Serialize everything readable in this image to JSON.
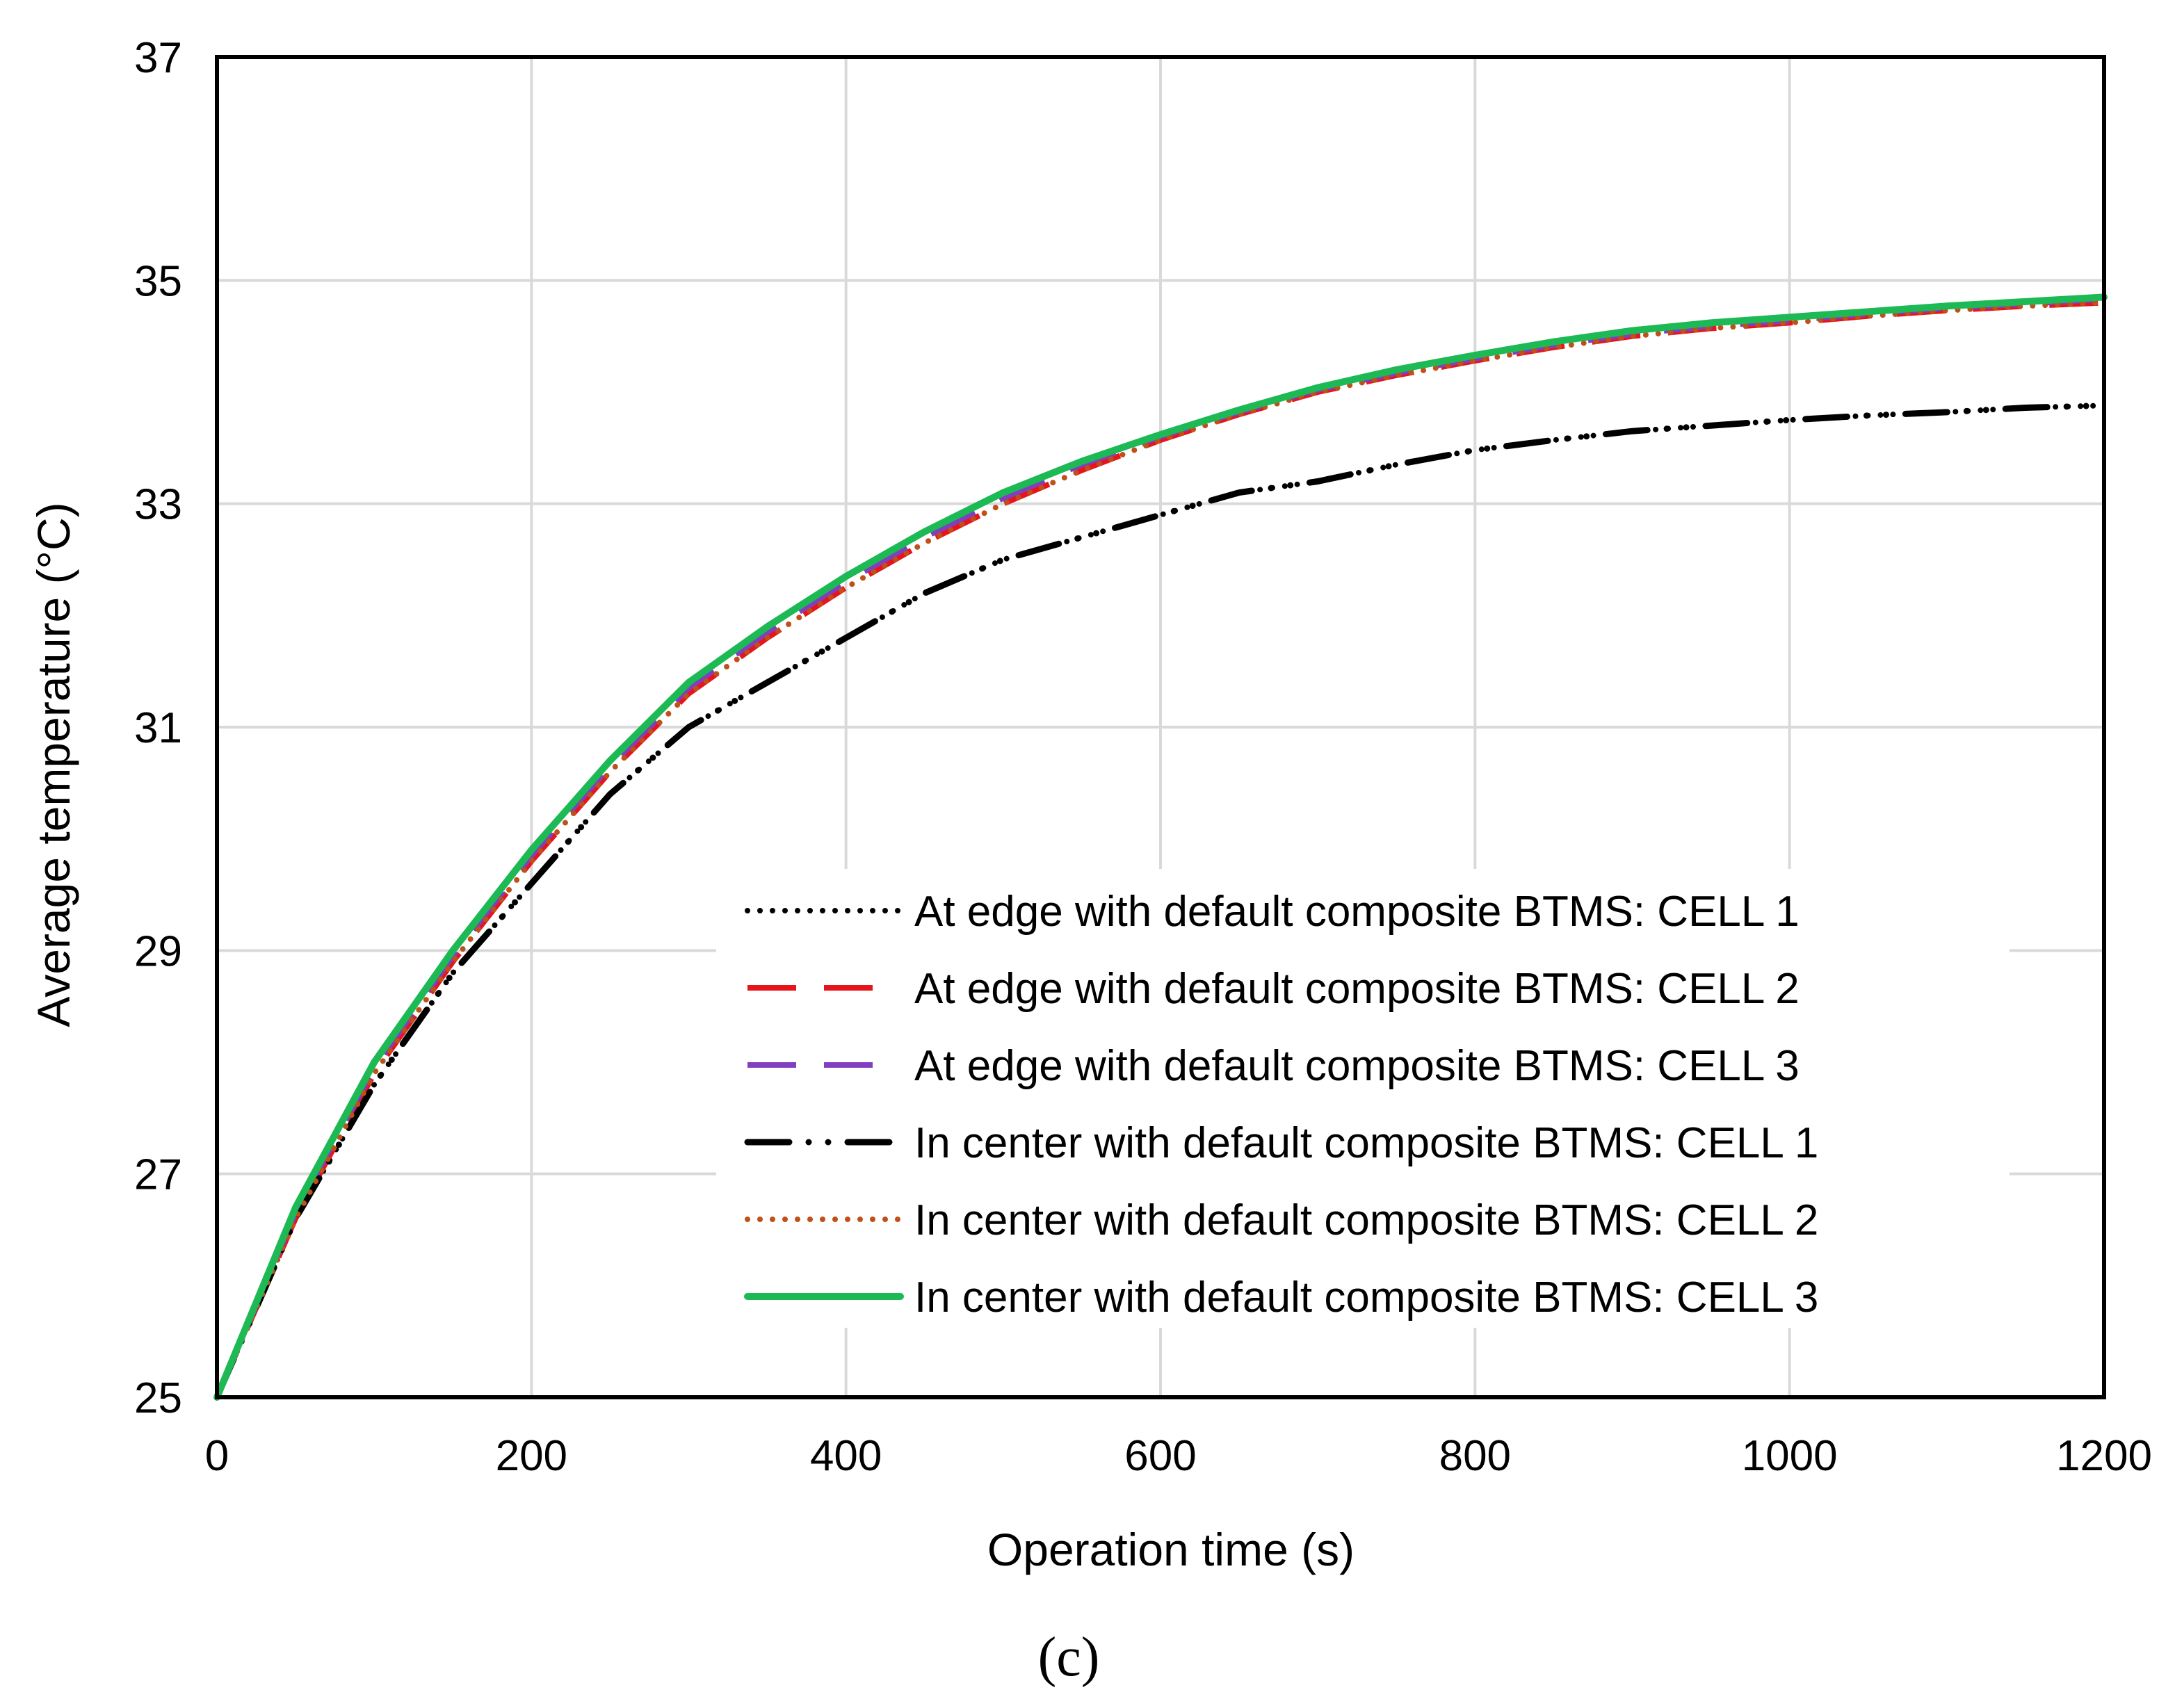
{
  "chart_data": {
    "type": "line",
    "xlabel": "Operation time (s)",
    "ylabel": "Average temperature (°C)",
    "xlim": [
      0,
      1200
    ],
    "ylim": [
      25,
      37
    ],
    "xticks": [
      0,
      200,
      400,
      600,
      800,
      1000,
      1200
    ],
    "yticks": [
      25,
      27,
      29,
      31,
      33,
      35,
      37
    ],
    "grid": true,
    "legend_position": "inside-bottom-right",
    "caption": "(c)",
    "series": [
      {
        "name": "At edge with default composite BTMS: CELL 1",
        "color": "#000000",
        "style": "dotted",
        "x": [
          0,
          50,
          100,
          150,
          200,
          250,
          300,
          350,
          400,
          450,
          500,
          550,
          600,
          650,
          700,
          750,
          800,
          850,
          900,
          950,
          1000,
          1050,
          1100,
          1150,
          1200
        ],
        "y": [
          25.0,
          26.6,
          27.8,
          28.8,
          29.6,
          30.4,
          31.0,
          31.4,
          31.8,
          32.2,
          32.5,
          32.7,
          32.9,
          33.1,
          33.2,
          33.35,
          33.48,
          33.57,
          33.65,
          33.7,
          33.75,
          33.79,
          33.82,
          33.86,
          33.88
        ]
      },
      {
        "name": "At edge with default composite BTMS: CELL 2",
        "color": "#e8141c",
        "style": "dashed",
        "x": [
          0,
          50,
          100,
          150,
          200,
          250,
          300,
          350,
          400,
          450,
          500,
          550,
          600,
          650,
          700,
          750,
          800,
          850,
          900,
          950,
          1000,
          1050,
          1100,
          1150,
          1200
        ],
        "y": [
          25.0,
          26.6,
          27.9,
          28.9,
          29.8,
          30.6,
          31.3,
          31.8,
          32.25,
          32.65,
          33.0,
          33.3,
          33.57,
          33.8,
          34.0,
          34.15,
          34.28,
          34.4,
          34.5,
          34.57,
          34.62,
          34.68,
          34.73,
          34.77,
          34.8
        ]
      },
      {
        "name": "At edge with default composite BTMS: CELL 3",
        "color": "#7f3fbf",
        "style": "dashed",
        "x": [
          0,
          50,
          100,
          150,
          200,
          250,
          300,
          350,
          400,
          450,
          500,
          550,
          600,
          650,
          700,
          750,
          800,
          850,
          900,
          950,
          1000,
          1050,
          1100,
          1150,
          1200
        ],
        "y": [
          25.0,
          26.65,
          27.95,
          28.95,
          29.85,
          30.65,
          31.35,
          31.85,
          32.3,
          32.7,
          33.05,
          33.35,
          33.6,
          33.82,
          34.02,
          34.17,
          34.3,
          34.42,
          34.52,
          34.59,
          34.64,
          34.7,
          34.75,
          34.79,
          34.83
        ]
      },
      {
        "name": "In center with default composite BTMS: CELL 1",
        "color": "#000000",
        "style": "longdash-dot-dot",
        "x": [
          0,
          50,
          100,
          150,
          200,
          250,
          300,
          350,
          400,
          450,
          500,
          550,
          600,
          650,
          700,
          750,
          800,
          850,
          900,
          950,
          1000,
          1050,
          1100,
          1150,
          1200
        ],
        "y": [
          25.0,
          26.6,
          27.8,
          28.8,
          29.6,
          30.4,
          31.0,
          31.4,
          31.8,
          32.2,
          32.5,
          32.7,
          32.9,
          33.1,
          33.2,
          33.35,
          33.48,
          33.57,
          33.65,
          33.7,
          33.75,
          33.79,
          33.82,
          33.86,
          33.88
        ]
      },
      {
        "name": "In center with default composite BTMS: CELL 2",
        "color": "#c0501a",
        "style": "dotted",
        "x": [
          0,
          50,
          100,
          150,
          200,
          250,
          300,
          350,
          400,
          450,
          500,
          550,
          600,
          650,
          700,
          750,
          800,
          850,
          900,
          950,
          1000,
          1050,
          1100,
          1150,
          1200
        ],
        "y": [
          25.0,
          26.6,
          27.9,
          28.9,
          29.8,
          30.6,
          31.3,
          31.8,
          32.25,
          32.65,
          33.0,
          33.3,
          33.57,
          33.8,
          34.0,
          34.15,
          34.28,
          34.4,
          34.5,
          34.57,
          34.62,
          34.68,
          34.73,
          34.77,
          34.8
        ]
      },
      {
        "name": "In center with default composite BTMS: CELL 3",
        "color": "#1db954",
        "style": "solid",
        "x": [
          0,
          50,
          100,
          150,
          200,
          250,
          300,
          350,
          400,
          450,
          500,
          550,
          600,
          650,
          700,
          750,
          800,
          850,
          900,
          950,
          1000,
          1050,
          1100,
          1150,
          1200
        ],
        "y": [
          25.0,
          26.7,
          28.0,
          29.0,
          29.9,
          30.7,
          31.4,
          31.9,
          32.35,
          32.75,
          33.1,
          33.38,
          33.62,
          33.84,
          34.04,
          34.2,
          34.33,
          34.45,
          34.55,
          34.62,
          34.67,
          34.72,
          34.77,
          34.81,
          34.85
        ]
      }
    ]
  }
}
